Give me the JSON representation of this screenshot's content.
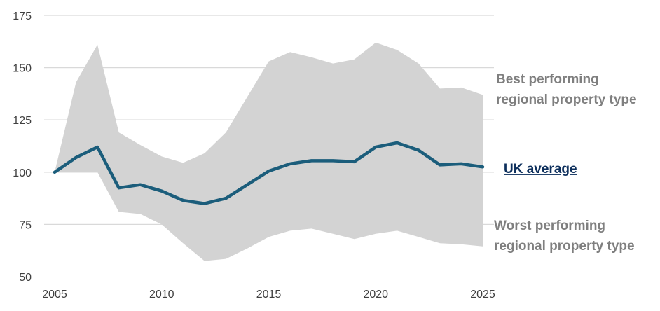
{
  "chart_data": {
    "type": "area",
    "x": [
      2005,
      2006,
      2007,
      2008,
      2009,
      2010,
      2011,
      2012,
      2013,
      2014,
      2015,
      2016,
      2017,
      2018,
      2019,
      2020,
      2021,
      2022,
      2023,
      2024,
      2025
    ],
    "series": [
      {
        "name": "UK average",
        "role": "line",
        "values": [
          100,
          107,
          112,
          92.5,
          94,
          91,
          86.5,
          85,
          87.5,
          94,
          100.5,
          104,
          105.5,
          105.5,
          105,
          112,
          114,
          110.5,
          103.5,
          104,
          102.5
        ]
      },
      {
        "name": "Best performing regional property type",
        "role": "band-upper",
        "values": [
          100,
          143,
          161,
          119,
          113,
          107.5,
          104.5,
          109,
          119,
          136,
          153,
          157.5,
          155,
          152,
          154,
          162,
          158.5,
          152,
          140,
          140.5,
          137
        ]
      },
      {
        "name": "Worst performing regional property type",
        "role": "band-lower",
        "values": [
          100,
          100,
          100,
          81,
          80,
          75,
          66,
          57.5,
          58.5,
          63.5,
          69,
          72,
          73,
          70.5,
          68,
          70.5,
          72,
          69,
          66,
          65.5,
          64.5
        ]
      }
    ],
    "xlim": [
      2005,
      2025
    ],
    "ylim": [
      50,
      175
    ],
    "xticks": [
      "2005",
      "2010",
      "2015",
      "2020",
      "2025"
    ],
    "yticks": [
      "50",
      "75",
      "100",
      "125",
      "150",
      "175"
    ],
    "grid": "horizontal",
    "colors": {
      "line": "#1b5d7b",
      "band": "#d3d3d3",
      "grid": "#d9d9d9",
      "band_label": "#7f7f7f",
      "line_label": "#0d2f5c"
    },
    "annotations": {
      "best_line1": "Best performing",
      "best_line2": "regional property type",
      "uk_label": "UK average",
      "worst_line1": "Worst performing",
      "worst_line2": "regional property type"
    }
  }
}
